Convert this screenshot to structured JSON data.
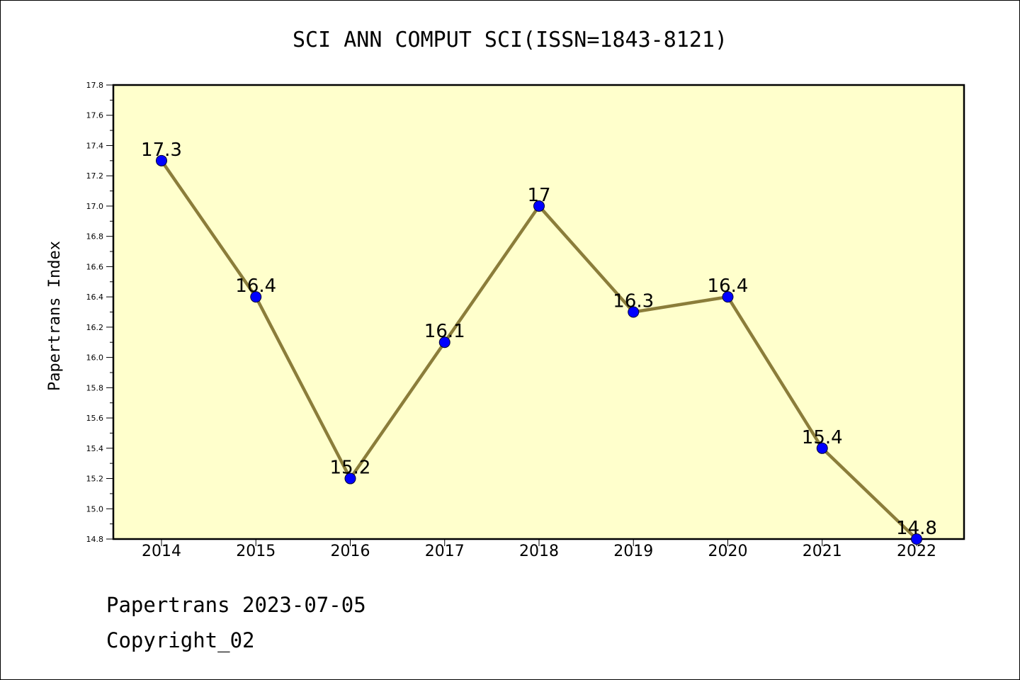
{
  "chart_data": {
    "type": "line",
    "title": "SCI ANN COMPUT SCI(ISSN=1843-8121)",
    "xlabel": "",
    "ylabel": "Papertrans Index",
    "categories": [
      "2014",
      "2015",
      "2016",
      "2017",
      "2018",
      "2019",
      "2020",
      "2021",
      "2022"
    ],
    "series": [
      {
        "values": [
          17.3,
          16.4,
          15.2,
          16.1,
          17.0,
          16.3,
          16.4,
          15.4,
          14.8
        ],
        "data_labels": [
          "17.3",
          "16.4",
          "15.2",
          "16.1",
          "17",
          "16.3",
          "16.4",
          "15.4",
          "14.8"
        ]
      }
    ],
    "ylim": [
      14.8,
      17.8
    ],
    "y_ticks": [
      "14.8",
      "15.0",
      "15.2",
      "15.4",
      "15.6",
      "15.8",
      "16.0",
      "16.2",
      "16.4",
      "16.6",
      "16.8",
      "17.0",
      "17.2",
      "17.4",
      "17.6",
      "17.8"
    ],
    "grid": false,
    "legend": "none"
  },
  "footer": {
    "line1": "Papertrans 2023-07-05",
    "line2": "Copyright_02"
  },
  "colors": {
    "plot_background": "#ffffcc",
    "line": "#8b7d3a",
    "marker": "#0000ff",
    "axis": "#000000"
  }
}
